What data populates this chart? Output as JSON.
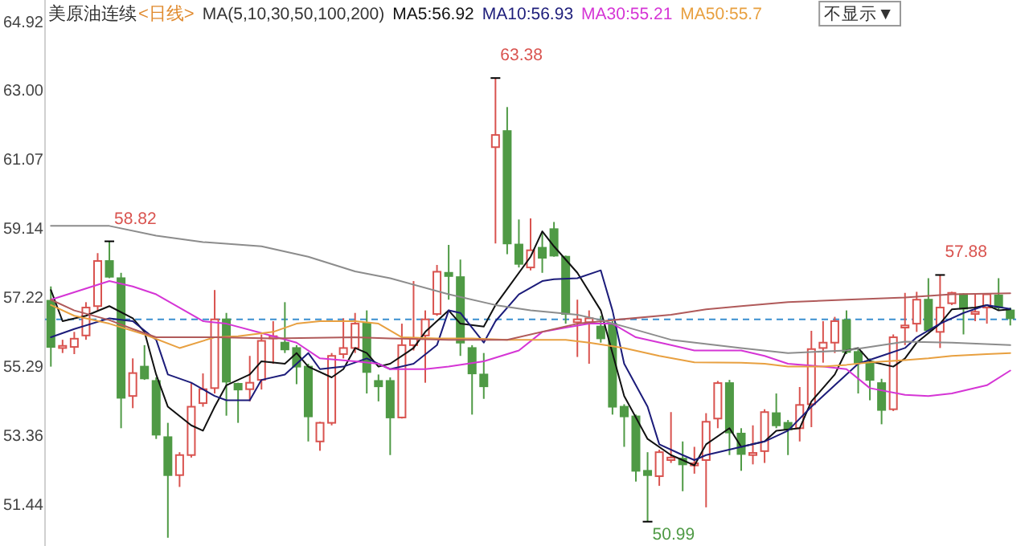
{
  "chart_data": {
    "type": "candlestick",
    "title": "美原油连续",
    "subtitle": "<日线>",
    "legend_title": "MA(5,10,30,50,100,200)",
    "legend": "top left",
    "tick_labels": "y",
    "categories": [
      null,
      null,
      null,
      null,
      null,
      null,
      null,
      null,
      null,
      null,
      null,
      null,
      null,
      null,
      null,
      null,
      null,
      null,
      null,
      null,
      null,
      null,
      null,
      null,
      null,
      null,
      null,
      null,
      null,
      null,
      null,
      null,
      null,
      null,
      null,
      null,
      null,
      null,
      null,
      null,
      null,
      null,
      null,
      null,
      null,
      null,
      null,
      null,
      null,
      null,
      null,
      null,
      null,
      null,
      null,
      null,
      null,
      null,
      null,
      null,
      null,
      null,
      null,
      null,
      null,
      null,
      null,
      null,
      null,
      null,
      null,
      null,
      null,
      null,
      null,
      null,
      null,
      null,
      null,
      null,
      null,
      null,
      null
    ],
    "ohlc": [
      [
        57.16,
        57.56,
        55.32,
        55.87
      ],
      [
        55.84,
        56.07,
        55.7,
        55.9
      ],
      [
        55.87,
        56.29,
        55.67,
        56.1
      ],
      [
        56.19,
        57.12,
        56.07,
        56.97
      ],
      [
        57.01,
        58.49,
        56.89,
        58.27
      ],
      [
        58.27,
        58.82,
        57.79,
        57.83
      ],
      [
        57.79,
        57.94,
        53.6,
        54.45
      ],
      [
        54.5,
        55.55,
        54.16,
        55.14
      ],
      [
        55.32,
        55.92,
        54.95,
        54.99
      ],
      [
        54.92,
        55.02,
        53.3,
        53.42
      ],
      [
        53.35,
        53.75,
        50.54,
        52.29
      ],
      [
        52.29,
        52.93,
        51.96,
        52.85
      ],
      [
        52.85,
        54.87,
        52.78,
        54.2
      ],
      [
        54.3,
        55.13,
        54.2,
        54.69
      ],
      [
        54.72,
        57.46,
        54.57,
        56.64
      ],
      [
        56.64,
        56.82,
        53.95,
        54.9
      ],
      [
        54.84,
        54.87,
        53.75,
        54.68
      ],
      [
        54.69,
        55.62,
        54.35,
        54.87
      ],
      [
        54.95,
        56.22,
        54.68,
        56.04
      ],
      [
        56.11,
        56.59,
        55.4,
        56.17
      ],
      [
        55.99,
        57.12,
        55.7,
        55.8
      ],
      [
        55.84,
        55.92,
        54.83,
        55.32
      ],
      [
        55.32,
        55.4,
        53.23,
        53.93
      ],
      [
        53.23,
        53.78,
        52.97,
        53.75
      ],
      [
        53.75,
        55.7,
        53.68,
        55.62
      ],
      [
        55.67,
        56.67,
        55.55,
        55.84
      ],
      [
        55.84,
        56.82,
        55.7,
        56.52
      ],
      [
        56.52,
        56.89,
        54.57,
        55.17
      ],
      [
        54.92,
        55.1,
        54.35,
        54.77
      ],
      [
        54.92,
        55.02,
        52.85,
        53.9
      ],
      [
        53.9,
        56.52,
        53.87,
        55.92
      ],
      [
        55.92,
        57.71,
        55.77,
        56.11
      ],
      [
        56.19,
        56.89,
        54.87,
        56.64
      ],
      [
        56.79,
        58.16,
        56.74,
        57.97
      ],
      [
        57.94,
        58.72,
        57.19,
        57.85
      ],
      [
        57.82,
        58.31,
        55.62,
        55.99
      ],
      [
        55.84,
        55.92,
        53.98,
        55.13
      ],
      [
        55.1,
        55.7,
        54.42,
        54.77
      ],
      [
        61.45,
        63.38,
        58.76,
        61.79
      ],
      [
        61.9,
        62.57,
        58.46,
        58.76
      ],
      [
        58.73,
        59.43,
        58.09,
        58.19
      ],
      [
        58.09,
        59.46,
        58.01,
        58.57
      ],
      [
        58.64,
        59.06,
        57.94,
        58.36
      ],
      [
        59.16,
        59.36,
        58.39,
        58.42
      ],
      [
        58.39,
        58.42,
        56.52,
        56.79
      ],
      [
        56.56,
        57.19,
        55.59,
        56.64
      ],
      [
        56.56,
        56.89,
        55.4,
        56.67
      ],
      [
        56.44,
        56.74,
        55.99,
        56.11
      ],
      [
        56.52,
        56.59,
        53.98,
        54.2
      ],
      [
        54.2,
        54.27,
        53.08,
        53.93
      ],
      [
        53.93,
        53.98,
        52.11,
        52.41
      ],
      [
        52.41,
        52.93,
        50.99,
        52.29
      ],
      [
        52.26,
        53.0,
        51.99,
        52.93
      ],
      [
        52.71,
        54.05,
        52.63,
        52.78
      ],
      [
        52.75,
        53.23,
        51.84,
        52.59
      ],
      [
        52.56,
        53.08,
        52.33,
        52.62
      ],
      [
        52.71,
        54.02,
        51.39,
        53.78
      ],
      [
        53.87,
        54.92,
        53.6,
        54.86
      ],
      [
        54.86,
        54.95,
        52.85,
        53.48
      ],
      [
        53.45,
        53.6,
        52.41,
        52.88
      ],
      [
        52.85,
        53.68,
        52.59,
        52.91
      ],
      [
        52.96,
        54.13,
        52.63,
        54.05
      ],
      [
        54.02,
        54.57,
        53.6,
        53.68
      ],
      [
        53.75,
        53.83,
        52.85,
        53.57
      ],
      [
        53.6,
        54.75,
        53.23,
        54.25
      ],
      [
        54.27,
        56.32,
        53.63,
        55.81
      ],
      [
        55.84,
        56.59,
        55.43,
        55.99
      ],
      [
        55.99,
        56.71,
        55.7,
        56.59
      ],
      [
        56.62,
        56.89,
        55.67,
        55.73
      ],
      [
        55.73,
        55.84,
        54.57,
        55.43
      ],
      [
        55.46,
        55.55,
        54.38,
        54.95
      ],
      [
        54.86,
        54.98,
        53.71,
        54.11
      ],
      [
        54.13,
        56.22,
        54.08,
        56.14
      ],
      [
        56.41,
        57.38,
        55.92,
        56.47
      ],
      [
        56.52,
        57.41,
        56.29,
        57.19
      ],
      [
        57.19,
        57.79,
        56.29,
        56.34
      ],
      [
        56.29,
        57.88,
        55.84,
        56.97
      ],
      [
        57.09,
        57.41,
        57.04,
        57.38
      ],
      [
        57.34,
        57.37,
        56.22,
        56.94
      ],
      [
        56.79,
        57.34,
        56.59,
        56.85
      ],
      [
        56.97,
        57.37,
        56.52,
        57.34
      ],
      [
        57.31,
        57.79,
        56.89,
        56.97
      ],
      [
        56.89,
        56.97,
        56.47,
        56.67
      ]
    ],
    "colors": [
      "#4f9a45",
      "#d9534f",
      "#d9534f",
      "#d9534f",
      "#d9534f",
      "#4f9a45",
      "#4f9a45",
      "#d9534f",
      "#4f9a45",
      "#4f9a45",
      "#4f9a45",
      "#d9534f",
      "#d9534f",
      "#d9534f",
      "#d9534f",
      "#4f9a45",
      "#4f9a45",
      "#d9534f",
      "#d9534f",
      "#d9534f",
      "#4f9a45",
      "#4f9a45",
      "#4f9a45",
      "#d9534f",
      "#d9534f",
      "#d9534f",
      "#d9534f",
      "#4f9a45",
      "#4f9a45",
      "#4f9a45",
      "#d9534f",
      "#d9534f",
      "#d9534f",
      "#d9534f",
      "#4f9a45",
      "#4f9a45",
      "#4f9a45",
      "#4f9a45",
      "#d9534f",
      "#4f9a45",
      "#4f9a45",
      "#d9534f",
      "#4f9a45",
      "#4f9a45",
      "#4f9a45",
      "#d9534f",
      "#d9534f",
      "#4f9a45",
      "#4f9a45",
      "#4f9a45",
      "#4f9a45",
      "#4f9a45",
      "#d9534f",
      "#d9534f",
      "#4f9a45",
      "#d9534f",
      "#d9534f",
      "#d9534f",
      "#4f9a45",
      "#4f9a45",
      "#d9534f",
      "#d9534f",
      "#4f9a45",
      "#4f9a45",
      "#d9534f",
      "#d9534f",
      "#d9534f",
      "#d9534f",
      "#4f9a45",
      "#4f9a45",
      "#4f9a45",
      "#4f9a45",
      "#d9534f",
      "#d9534f",
      "#d9534f",
      "#4f9a45",
      "#d9534f",
      "#d9534f",
      "#4f9a45",
      "#d9534f",
      "#d9534f",
      "#4f9a45",
      "#4f9a45"
    ],
    "series": [
      {
        "type": "line",
        "name": "MA5:56.92",
        "color": "#111111",
        "values": [
          57.46,
          56.59,
          null,
          56.74,
          null,
          57.01,
          null,
          56.67,
          56.29,
          55.1,
          54.2,
          null,
          53.68,
          53.53,
          54.2,
          54.8,
          null,
          55.1,
          55.47,
          null,
          55.4,
          55.7,
          55.32,
          null,
          55.02,
          55.25,
          55.84,
          55.7,
          55.32,
          55.4,
          null,
          55.84,
          56.29,
          null,
          56.89,
          56.52,
          null,
          56.44,
          57.04,
          57.49,
          null,
          58.39,
          59.1,
          58.68,
          null,
          57.94,
          null,
          56.89,
          55.7,
          54.5,
          null,
          53.3,
          null,
          52.85,
          52.71,
          52.56,
          53.15,
          null,
          53.6,
          53.08,
          null,
          53.23,
          53.53,
          null,
          53.6,
          54.35,
          null,
          55.1,
          55.77,
          55.84,
          55.47,
          null,
          55.32,
          55.55,
          55.99,
          null,
          56.52,
          56.92,
          null,
          56.97,
          57.04,
          56.89,
          56.92
        ]
      },
      {
        "type": "line",
        "name": "MA10:56.93",
        "color": "#1c1c7a",
        "values": [
          56.14,
          null,
          56.37,
          null,
          null,
          56.67,
          null,
          56.59,
          null,
          56.07,
          55.1,
          null,
          54.87,
          null,
          54.5,
          54.38,
          null,
          54.38,
          54.95,
          null,
          55.1,
          null,
          55.7,
          55.25,
          null,
          55.32,
          null,
          55.55,
          null,
          55.25,
          null,
          55.4,
          null,
          55.92,
          56.89,
          56.82,
          null,
          55.99,
          56.59,
          null,
          57.34,
          null,
          57.71,
          57.76,
          null,
          57.79,
          null,
          58.01,
          56.89,
          55.4,
          null,
          54.2,
          53.15,
          null,
          52.85,
          52.71,
          52.85,
          null,
          null,
          53.08,
          null,
          53.23,
          null,
          53.53,
          null,
          54.2,
          null,
          54.8,
          null,
          55.4,
          null,
          55.62,
          null,
          55.84,
          56.14,
          null,
          56.52,
          null,
          56.82,
          null,
          57.04,
          null,
          56.93
        ]
      },
      {
        "type": "line",
        "name": "MA30:55.21",
        "color": "#d535d5",
        "values": [
          57.19,
          null,
          null,
          null,
          null,
          57.71,
          null,
          57.56,
          null,
          57.34,
          null,
          null,
          null,
          56.59,
          null,
          56.52,
          null,
          null,
          56.26,
          null,
          null,
          55.99,
          null,
          55.55,
          null,
          null,
          55.47,
          null,
          55.4,
          55.25,
          null,
          null,
          55.25,
          null,
          55.32,
          null,
          null,
          55.47,
          null,
          null,
          55.77,
          null,
          56.29,
          null,
          56.41,
          null,
          56.52,
          null,
          56.52,
          null,
          56.14,
          null,
          null,
          55.92,
          null,
          55.77,
          null,
          null,
          null,
          55.77,
          null,
          55.62,
          null,
          55.4,
          null,
          null,
          55.32,
          null,
          55.25,
          null,
          54.72,
          null,
          null,
          54.53,
          null,
          54.5,
          null,
          54.57,
          null,
          null,
          54.8,
          null,
          55.21
        ]
      },
      {
        "type": "line",
        "name": "MA50:55.7",
        "color": "#e8a040",
        "values": [
          57.04,
          null,
          56.74,
          null,
          null,
          56.52,
          null,
          null,
          56.22,
          null,
          null,
          55.84,
          null,
          null,
          56.14,
          null,
          56.17,
          null,
          null,
          56.29,
          null,
          56.52,
          null,
          56.59,
          null,
          null,
          56.59,
          null,
          56.52,
          null,
          56.14,
          null,
          null,
          56.11,
          null,
          null,
          56.11,
          null,
          null,
          56.07,
          null,
          null,
          56.07,
          null,
          56.07,
          null,
          55.99,
          null,
          null,
          55.84,
          null,
          null,
          55.62,
          null,
          null,
          55.44,
          null,
          null,
          null,
          55.43,
          null,
          55.4,
          null,
          55.32,
          null,
          null,
          55.32,
          null,
          55.37,
          null,
          55.44,
          null,
          null,
          55.5,
          null,
          55.55,
          null,
          55.62,
          null,
          null,
          55.67,
          null,
          55.7
        ]
      },
      {
        "type": "line",
        "color": "#b05a5a",
        "values": [
          57.19,
          null,
          56.89,
          null,
          null,
          56.62,
          null,
          56.37,
          null,
          56.14,
          null,
          null,
          null,
          null,
          56.14,
          null,
          null,
          null,
          null,
          56.11,
          null,
          null,
          null,
          null,
          null,
          null,
          56.14,
          null,
          null,
          56.11,
          null,
          null,
          null,
          null,
          56.07,
          null,
          null,
          null,
          null,
          56.07,
          null,
          null,
          null,
          null,
          null,
          56.52,
          null,
          null,
          56.62,
          null,
          null,
          null,
          null,
          56.77,
          null,
          null,
          56.92,
          null,
          null,
          57.01,
          null,
          null,
          null,
          57.12,
          null,
          null,
          null,
          null,
          57.19,
          null,
          null,
          null,
          null,
          57.25,
          null,
          null,
          null,
          57.34,
          null,
          null,
          null,
          null,
          57.37
        ]
      },
      {
        "type": "line",
        "color": "#8c8c8c",
        "values": [
          59.25,
          null,
          null,
          null,
          null,
          59.25,
          null,
          null,
          null,
          58.98,
          null,
          null,
          null,
          58.8,
          null,
          null,
          null,
          null,
          58.68,
          null,
          null,
          null,
          58.39,
          null,
          null,
          null,
          57.98,
          null,
          null,
          57.79,
          null,
          null,
          null,
          null,
          57.34,
          null,
          null,
          null,
          57.04,
          null,
          null,
          56.89,
          null,
          null,
          null,
          56.77,
          null,
          56.62,
          null,
          56.44,
          null,
          null,
          null,
          56.07,
          null,
          null,
          null,
          null,
          null,
          55.84,
          null,
          null,
          null,
          55.7,
          null,
          null,
          null,
          null,
          55.77,
          null,
          null,
          null,
          null,
          56.02,
          null,
          null,
          null,
          55.99,
          null,
          null,
          null,
          null,
          55.92
        ]
      }
    ],
    "ylim": [
      50.31,
      65.56
    ],
    "yticks": [
      64.92,
      {
        "value": 63,
        "label": "63.00"
      },
      61.07,
      59.14,
      57.22,
      55.29,
      53.36,
      51.44
    ],
    "ref_lines": [
      {
        "axis": "y",
        "value": 56.64,
        "color": "#3a8fd0",
        "line_style": "dashed"
      }
    ],
    "annotations": [
      "58.82",
      "63.38",
      "50.99",
      "57.88",
      "不显示▼"
    ]
  }
}
